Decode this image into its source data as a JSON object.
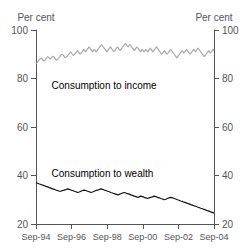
{
  "chart_data": {
    "type": "line",
    "ylabel": "Per cent",
    "y2label": "Per cent",
    "xlim": [
      0,
      40
    ],
    "xticks": [
      {
        "value": 0,
        "label": "Sep-94"
      },
      {
        "value": 8,
        "label": "Sep-96"
      },
      {
        "value": 16,
        "label": "Sep-98"
      },
      {
        "value": 24,
        "label": "Sep-00"
      },
      {
        "value": 32,
        "label": "Sep-02"
      },
      {
        "value": 40,
        "label": "Sep-04"
      }
    ],
    "ylim": [
      20,
      100
    ],
    "yticks": [
      20,
      40,
      60,
      80,
      100
    ],
    "y2lim": [
      20,
      100
    ],
    "y2ticks": [
      20,
      40,
      60,
      80,
      100
    ],
    "grid": false,
    "annotations": [
      {
        "text": "Consumption to income",
        "x": 3.5,
        "y": 79
      },
      {
        "text": "Consumption to wealth",
        "x": 3.5,
        "y": 43
      }
    ],
    "series": [
      {
        "color": "#aaaaaa",
        "x": [
          0,
          0.199,
          0.398,
          0.597,
          0.796,
          0.995,
          1.194,
          1.393,
          1.592,
          1.791,
          1.99,
          2.189,
          2.388,
          2.587,
          2.786,
          2.985,
          3.184,
          3.383,
          3.582,
          3.781,
          3.98,
          4.179,
          4.378,
          4.577,
          4.776,
          4.975,
          5.174,
          5.373,
          5.572,
          5.771,
          5.97,
          6.169,
          6.368,
          6.567,
          6.766,
          6.965,
          7.164,
          7.363,
          7.562,
          7.761,
          7.96,
          8.159,
          8.358,
          8.557,
          8.756,
          8.955,
          9.154,
          9.353,
          9.552,
          9.751,
          9.95,
          10.149,
          10.348,
          10.547,
          10.746,
          10.945,
          11.144,
          11.343,
          11.542,
          11.741,
          11.94,
          12.139,
          12.338,
          12.537,
          12.736,
          12.935,
          13.134,
          13.333,
          13.532,
          13.731,
          13.93,
          14.129,
          14.328,
          14.527,
          14.726,
          14.925,
          15.124,
          15.323,
          15.522,
          15.721,
          15.92,
          16.119,
          16.318,
          16.517,
          16.716,
          16.915,
          17.114,
          17.313,
          17.512,
          17.711,
          17.91,
          18.109,
          18.308,
          18.507,
          18.706,
          18.905,
          19.104,
          19.303,
          19.502,
          19.701,
          19.9,
          20.1,
          20.299,
          20.498,
          20.697,
          20.896,
          21.095,
          21.294,
          21.493,
          21.692,
          21.891,
          22.09,
          22.289,
          22.488,
          22.687,
          22.886,
          23.085,
          23.284,
          23.483,
          23.682,
          23.881,
          24.08,
          24.279,
          24.478,
          24.677,
          24.876,
          25.075,
          25.274,
          25.473,
          25.672,
          25.871,
          26.07,
          26.269,
          26.468,
          26.667,
          26.866,
          27.065,
          27.264,
          27.463,
          27.662,
          27.861,
          28.06,
          28.259,
          28.458,
          28.657,
          28.856,
          29.055,
          29.254,
          29.453,
          29.652,
          29.851,
          30.05,
          30.249,
          30.448,
          30.647,
          30.846,
          31.045,
          31.244,
          31.443,
          31.642,
          31.841,
          32.04,
          32.239,
          32.438,
          32.637,
          32.836,
          33.035,
          33.234,
          33.433,
          33.632,
          33.831,
          34.03,
          34.229,
          34.428,
          34.627,
          34.826,
          35.025,
          35.224,
          35.423,
          35.622,
          35.821,
          36.02,
          36.219,
          36.418,
          36.617,
          36.816,
          37.015,
          37.214,
          37.413,
          37.612,
          37.811,
          38.01,
          38.209,
          38.408,
          38.607,
          38.806,
          39.005,
          39.204,
          39.403,
          39.602,
          39.801,
          40
        ],
        "values": [
          86.0,
          86.5,
          87.0,
          87.5,
          87.8,
          88.2,
          88.5,
          88.0,
          87.5,
          87.2,
          87.5,
          88.0,
          88.5,
          89.0,
          88.8,
          88.5,
          88.0,
          88.5,
          88.8,
          89.2,
          89.0,
          88.5,
          88.0,
          87.5,
          87.8,
          88.2,
          88.5,
          89.0,
          89.5,
          90.0,
          89.8,
          89.5,
          89.0,
          88.5,
          88.8,
          89.2,
          89.5,
          90.0,
          90.5,
          91.0,
          90.5,
          90.0,
          89.5,
          89.8,
          90.2,
          90.5,
          91.0,
          91.5,
          91.0,
          90.5,
          90.0,
          90.5,
          91.0,
          91.5,
          92.0,
          91.5,
          91.0,
          91.5,
          92.0,
          92.5,
          93.0,
          92.5,
          92.0,
          91.5,
          91.0,
          91.5,
          92.0,
          91.5,
          91.0,
          91.5,
          92.0,
          92.5,
          93.0,
          93.5,
          94.0,
          93.5,
          93.0,
          92.5,
          92.0,
          91.5,
          91.0,
          91.5,
          92.0,
          92.5,
          93.0,
          92.5,
          92.0,
          91.5,
          91.0,
          91.5,
          92.0,
          92.5,
          93.0,
          92.5,
          92.0,
          91.5,
          92.0,
          92.5,
          93.0,
          93.5,
          94.0,
          94.5,
          94.0,
          93.5,
          93.0,
          93.5,
          94.0,
          93.5,
          93.0,
          92.5,
          92.0,
          91.5,
          92.0,
          92.5,
          93.0,
          92.5,
          92.0,
          91.5,
          91.0,
          91.5,
          92.0,
          91.5,
          91.0,
          91.5,
          92.0,
          91.5,
          91.0,
          91.5,
          92.0,
          92.5,
          92.0,
          91.5,
          91.0,
          91.5,
          92.0,
          92.5,
          93.0,
          92.5,
          92.0,
          91.5,
          91.0,
          90.5,
          90.0,
          90.5,
          91.0,
          91.5,
          91.0,
          90.5,
          90.0,
          90.5,
          91.0,
          91.5,
          92.0,
          91.5,
          91.0,
          90.5,
          90.0,
          89.5,
          89.0,
          88.5,
          89.0,
          89.5,
          90.0,
          90.5,
          91.0,
          91.5,
          91.0,
          90.5,
          91.0,
          91.5,
          92.0,
          91.5,
          91.0,
          90.5,
          90.0,
          90.5,
          91.0,
          91.5,
          92.0,
          91.5,
          91.0,
          91.5,
          92.0,
          92.5,
          92.0,
          91.5,
          91.0,
          90.5,
          90.0,
          89.5,
          89.0,
          89.5,
          90.0,
          90.5,
          91.0,
          91.5,
          91.0,
          90.5,
          91.0,
          91.5,
          92.0,
          91.5
        ]
      },
      {
        "color": "#111111",
        "x": [
          0,
          0.374,
          0.748,
          1.121,
          1.495,
          1.869,
          2.243,
          2.617,
          2.991,
          3.364,
          3.738,
          4.112,
          4.486,
          4.86,
          5.234,
          5.607,
          5.981,
          6.355,
          6.729,
          7.103,
          7.477,
          7.85,
          8.224,
          8.598,
          8.972,
          9.346,
          9.72,
          10.093,
          10.467,
          10.841,
          11.215,
          11.589,
          11.963,
          12.336,
          12.71,
          13.084,
          13.458,
          13.832,
          14.206,
          14.579,
          14.953,
          15.327,
          15.701,
          16.075,
          16.449,
          16.822,
          17.196,
          17.57,
          17.944,
          18.318,
          18.692,
          19.065,
          19.439,
          19.813,
          20.187,
          20.561,
          20.935,
          21.308,
          21.682,
          22.056,
          22.43,
          22.804,
          23.178,
          23.551,
          23.925,
          24.299,
          24.673,
          25.047,
          25.421,
          25.794,
          26.168,
          26.542,
          26.916,
          27.29,
          27.664,
          28.037,
          28.411,
          28.785,
          29.159,
          29.533,
          29.907,
          30.28,
          30.654,
          31.028,
          31.402,
          31.776,
          32.15,
          32.523,
          32.897,
          33.271,
          33.645,
          34.019,
          34.393,
          34.766,
          35.14,
          35.514,
          35.888,
          36.262,
          36.636,
          37.009,
          37.383,
          37.757,
          38.131,
          38.505,
          38.879,
          39.252,
          39.626,
          40
        ],
        "values": [
          37.0,
          36.8,
          36.5,
          36.3,
          36.0,
          35.8,
          35.5,
          35.3,
          35.0,
          34.8,
          34.5,
          34.3,
          34.0,
          33.8,
          33.5,
          33.5,
          33.8,
          34.0,
          34.2,
          34.5,
          34.3,
          34.0,
          33.8,
          33.5,
          33.3,
          33.0,
          33.2,
          33.5,
          33.8,
          34.0,
          33.8,
          33.5,
          33.3,
          33.0,
          33.2,
          33.5,
          33.8,
          34.0,
          34.2,
          34.5,
          34.3,
          34.0,
          33.8,
          33.5,
          33.3,
          33.0,
          32.8,
          32.5,
          32.3,
          32.0,
          32.2,
          32.5,
          32.8,
          33.0,
          32.8,
          32.5,
          32.3,
          32.0,
          31.8,
          31.5,
          31.3,
          31.0,
          31.2,
          31.5,
          31.3,
          31.0,
          30.8,
          30.5,
          30.8,
          31.0,
          31.2,
          31.5,
          31.3,
          31.0,
          30.8,
          30.5,
          30.3,
          30.0,
          30.2,
          30.5,
          30.8,
          31.0,
          30.8,
          30.5,
          30.3,
          30.0,
          29.8,
          29.5,
          29.3,
          29.0,
          28.8,
          28.5,
          28.3,
          28.0,
          27.8,
          27.5,
          27.3,
          27.0,
          26.8,
          26.5,
          26.3,
          26.0,
          25.8,
          25.5,
          25.3,
          25.0,
          24.8,
          24.5
        ]
      }
    ]
  }
}
